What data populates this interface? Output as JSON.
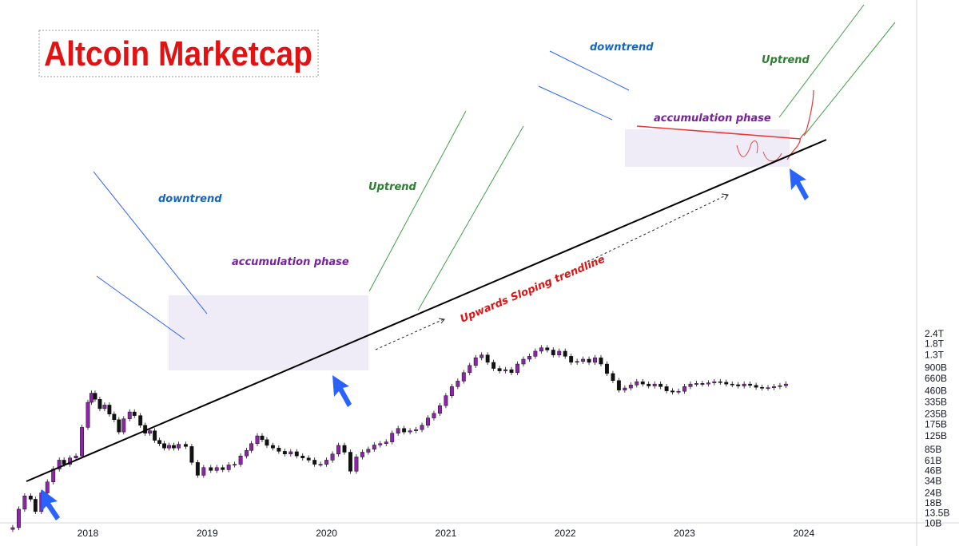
{
  "title": "Altcoin Marketcap",
  "chart_data": {
    "type": "candlestick",
    "title": "Altcoin Marketcap",
    "y_scale": "log",
    "y_ticks": [
      "2.4T",
      "1.8T",
      "1.3T",
      "900B",
      "660B",
      "460B",
      "335B",
      "235B",
      "175B",
      "125B",
      "85B",
      "61B",
      "46B",
      "34B",
      "24B",
      "18B",
      "13.5B",
      "10B"
    ],
    "y_tick_values": [
      2400,
      1800,
      1300,
      900,
      660,
      460,
      335,
      235,
      175,
      125,
      85,
      61,
      46,
      34,
      24,
      18,
      13.5,
      10
    ],
    "x_ticks": [
      "2018",
      "2019",
      "2020",
      "2021",
      "2022",
      "2023",
      "2024"
    ],
    "x_tick_values": [
      2018,
      2019,
      2020,
      2021,
      2022,
      2023,
      2024
    ],
    "x_range": [
      2017.35,
      2024.85
    ],
    "y_range_billions": [
      8.5,
      2700
    ],
    "series": [
      {
        "values_billions": [
          [
            2017.37,
            8.8
          ],
          [
            2017.42,
            15
          ],
          [
            2017.47,
            22
          ],
          [
            2017.52,
            20
          ],
          [
            2017.56,
            14
          ],
          [
            2017.61,
            24
          ],
          [
            2017.66,
            33
          ],
          [
            2017.71,
            48
          ],
          [
            2017.76,
            62
          ],
          [
            2017.8,
            55
          ],
          [
            2017.85,
            66
          ],
          [
            2017.9,
            70
          ],
          [
            2017.95,
            160
          ],
          [
            2018.0,
            330
          ],
          [
            2018.03,
            430
          ],
          [
            2018.06,
            360
          ],
          [
            2018.1,
            275
          ],
          [
            2018.14,
            305
          ],
          [
            2018.18,
            235
          ],
          [
            2018.22,
            200
          ],
          [
            2018.26,
            140
          ],
          [
            2018.3,
            205
          ],
          [
            2018.35,
            250
          ],
          [
            2018.39,
            225
          ],
          [
            2018.44,
            170
          ],
          [
            2018.48,
            135
          ],
          [
            2018.52,
            145
          ],
          [
            2018.56,
            110
          ],
          [
            2018.6,
            100
          ],
          [
            2018.64,
            88
          ],
          [
            2018.68,
            95
          ],
          [
            2018.72,
            88
          ],
          [
            2018.76,
            98
          ],
          [
            2018.82,
            92
          ],
          [
            2018.87,
            58
          ],
          [
            2018.92,
            40
          ],
          [
            2018.97,
            50
          ],
          [
            2019.03,
            46
          ],
          [
            2019.08,
            50
          ],
          [
            2019.13,
            47
          ],
          [
            2019.18,
            54
          ],
          [
            2019.23,
            55
          ],
          [
            2019.28,
            70
          ],
          [
            2019.33,
            82
          ],
          [
            2019.37,
            100
          ],
          [
            2019.42,
            125
          ],
          [
            2019.46,
            112
          ],
          [
            2019.5,
            95
          ],
          [
            2019.55,
            88
          ],
          [
            2019.6,
            80
          ],
          [
            2019.65,
            74
          ],
          [
            2019.7,
            79
          ],
          [
            2019.75,
            70
          ],
          [
            2019.8,
            66
          ],
          [
            2019.85,
            62
          ],
          [
            2019.9,
            55
          ],
          [
            2019.95,
            55
          ],
          [
            2020.0,
            62
          ],
          [
            2020.05,
            74
          ],
          [
            2020.1,
            95
          ],
          [
            2020.15,
            78
          ],
          [
            2020.2,
            45
          ],
          [
            2020.25,
            68
          ],
          [
            2020.3,
            78
          ],
          [
            2020.35,
            85
          ],
          [
            2020.4,
            96
          ],
          [
            2020.45,
            100
          ],
          [
            2020.5,
            105
          ],
          [
            2020.55,
            135
          ],
          [
            2020.6,
            155
          ],
          [
            2020.65,
            140
          ],
          [
            2020.7,
            145
          ],
          [
            2020.75,
            150
          ],
          [
            2020.8,
            170
          ],
          [
            2020.85,
            210
          ],
          [
            2020.9,
            240
          ],
          [
            2020.95,
            300
          ],
          [
            2021.0,
            400
          ],
          [
            2021.05,
            520
          ],
          [
            2021.1,
            610
          ],
          [
            2021.15,
            780
          ],
          [
            2021.2,
            960
          ],
          [
            2021.25,
            1200
          ],
          [
            2021.3,
            1300
          ],
          [
            2021.35,
            1050
          ],
          [
            2021.4,
            880
          ],
          [
            2021.45,
            820
          ],
          [
            2021.5,
            850
          ],
          [
            2021.55,
            780
          ],
          [
            2021.6,
            1000
          ],
          [
            2021.65,
            1150
          ],
          [
            2021.7,
            1250
          ],
          [
            2021.75,
            1450
          ],
          [
            2021.8,
            1600
          ],
          [
            2021.85,
            1500
          ],
          [
            2021.9,
            1300
          ],
          [
            2021.95,
            1450
          ],
          [
            2022.0,
            1250
          ],
          [
            2022.05,
            1050
          ],
          [
            2022.1,
            1080
          ],
          [
            2022.15,
            1150
          ],
          [
            2022.2,
            1050
          ],
          [
            2022.25,
            1200
          ],
          [
            2022.3,
            1000
          ],
          [
            2022.35,
            760
          ],
          [
            2022.4,
            620
          ],
          [
            2022.45,
            470
          ],
          [
            2022.5,
            500
          ],
          [
            2022.55,
            545
          ],
          [
            2022.6,
            600
          ],
          [
            2022.65,
            560
          ],
          [
            2022.7,
            530
          ],
          [
            2022.75,
            560
          ],
          [
            2022.8,
            520
          ],
          [
            2022.85,
            460
          ],
          [
            2022.9,
            445
          ],
          [
            2022.95,
            455
          ],
          [
            2023.0,
            520
          ],
          [
            2023.05,
            560
          ],
          [
            2023.1,
            570
          ],
          [
            2023.15,
            560
          ],
          [
            2023.2,
            580
          ],
          [
            2023.25,
            600
          ],
          [
            2023.3,
            590
          ],
          [
            2023.35,
            560
          ],
          [
            2023.4,
            550
          ],
          [
            2023.45,
            530
          ],
          [
            2023.5,
            560
          ],
          [
            2023.55,
            540
          ],
          [
            2023.6,
            510
          ],
          [
            2023.65,
            500
          ],
          [
            2023.7,
            505
          ],
          [
            2023.75,
            520
          ],
          [
            2023.8,
            535
          ],
          [
            2023.85,
            560
          ]
        ]
      }
    ],
    "annotations": [
      {
        "text": "downtrend",
        "color": "#1565c0"
      },
      {
        "text": "accumulation phase",
        "color": "#7b1fa2"
      },
      {
        "text": "Uptrend",
        "color": "#2e7d32"
      },
      {
        "text": "downtrend",
        "color": "#1565c0"
      },
      {
        "text": "accumulation phase",
        "color": "#7b1fa2"
      },
      {
        "text": "Uptrend",
        "color": "#2e7d32"
      },
      {
        "text": "Upwards Sloping trendline",
        "color": "#e21212"
      }
    ],
    "colors": {
      "candle": "#8e24aa",
      "candle_down": "#111111",
      "trendline": "#000000",
      "zone_fill": "#ede9f6",
      "arrow": "#2962ff",
      "title": "#e21212",
      "downtrend_lines": "#2962ff",
      "uptrend_lines": "#43a047",
      "resistance": "#e53935"
    }
  }
}
